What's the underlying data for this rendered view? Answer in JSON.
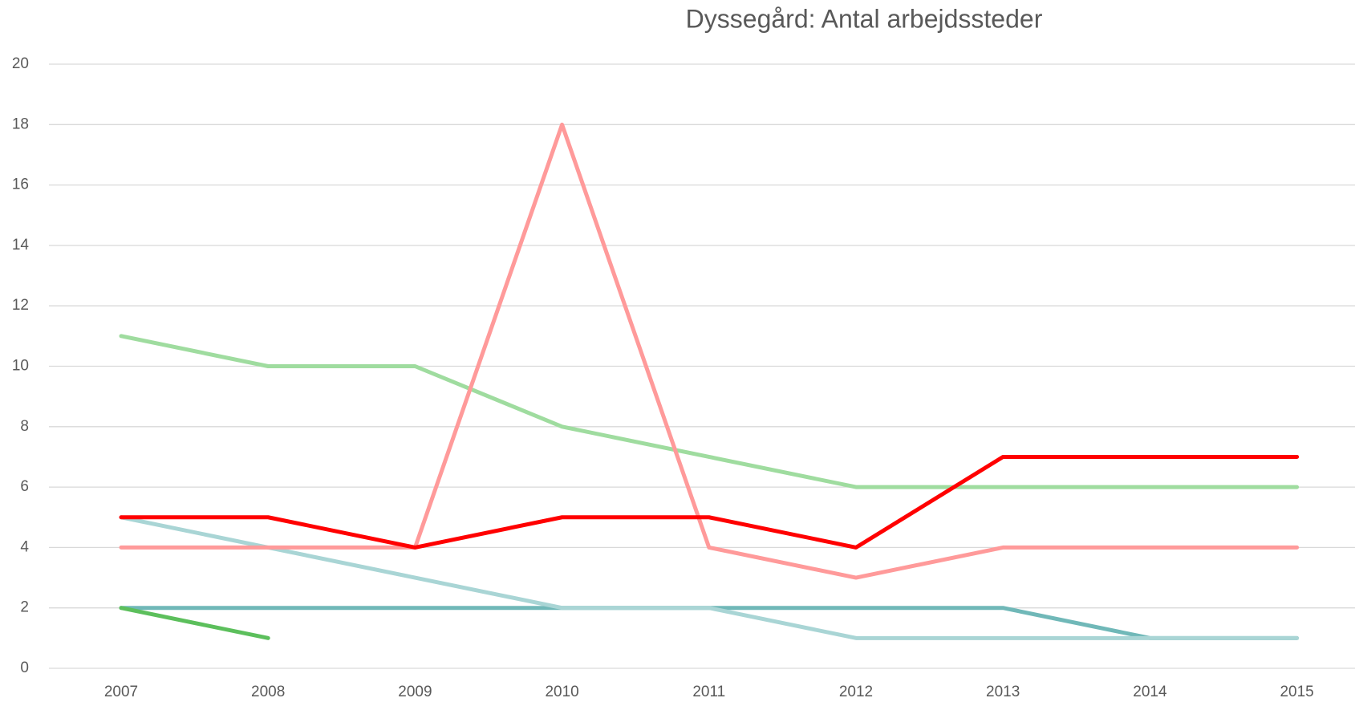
{
  "chart_data": {
    "type": "line",
    "title": "Dyssegård: Antal arbejdssteder",
    "categories": [
      "2007",
      "2008",
      "2009",
      "2010",
      "2011",
      "2012",
      "2013",
      "2014",
      "2015"
    ],
    "series": [
      {
        "color": "#70b8b8",
        "values": [
          2,
          2,
          2,
          2,
          2,
          2,
          2,
          1,
          1
        ]
      },
      {
        "color": "#a9d5d5",
        "values": [
          5,
          4,
          3,
          2,
          2,
          1,
          1,
          1,
          1
        ]
      },
      {
        "color": "#5cbf5c",
        "values": [
          2,
          1,
          null,
          null,
          null,
          null,
          null,
          null,
          null
        ]
      },
      {
        "color": "#9fdc9f",
        "values": [
          11,
          10,
          10,
          8,
          7,
          6,
          6,
          6,
          6
        ]
      },
      {
        "color": "#ff9a9a",
        "values": [
          4,
          4,
          4,
          18,
          4,
          3,
          4,
          4,
          4
        ]
      },
      {
        "color": "#ff0000",
        "values": [
          5,
          5,
          4,
          5,
          5,
          4,
          7,
          7,
          7
        ]
      }
    ],
    "ylim": [
      0,
      20
    ],
    "yticks": [
      0,
      2,
      4,
      6,
      8,
      10,
      12,
      14,
      16,
      18,
      20
    ],
    "grid": true
  }
}
